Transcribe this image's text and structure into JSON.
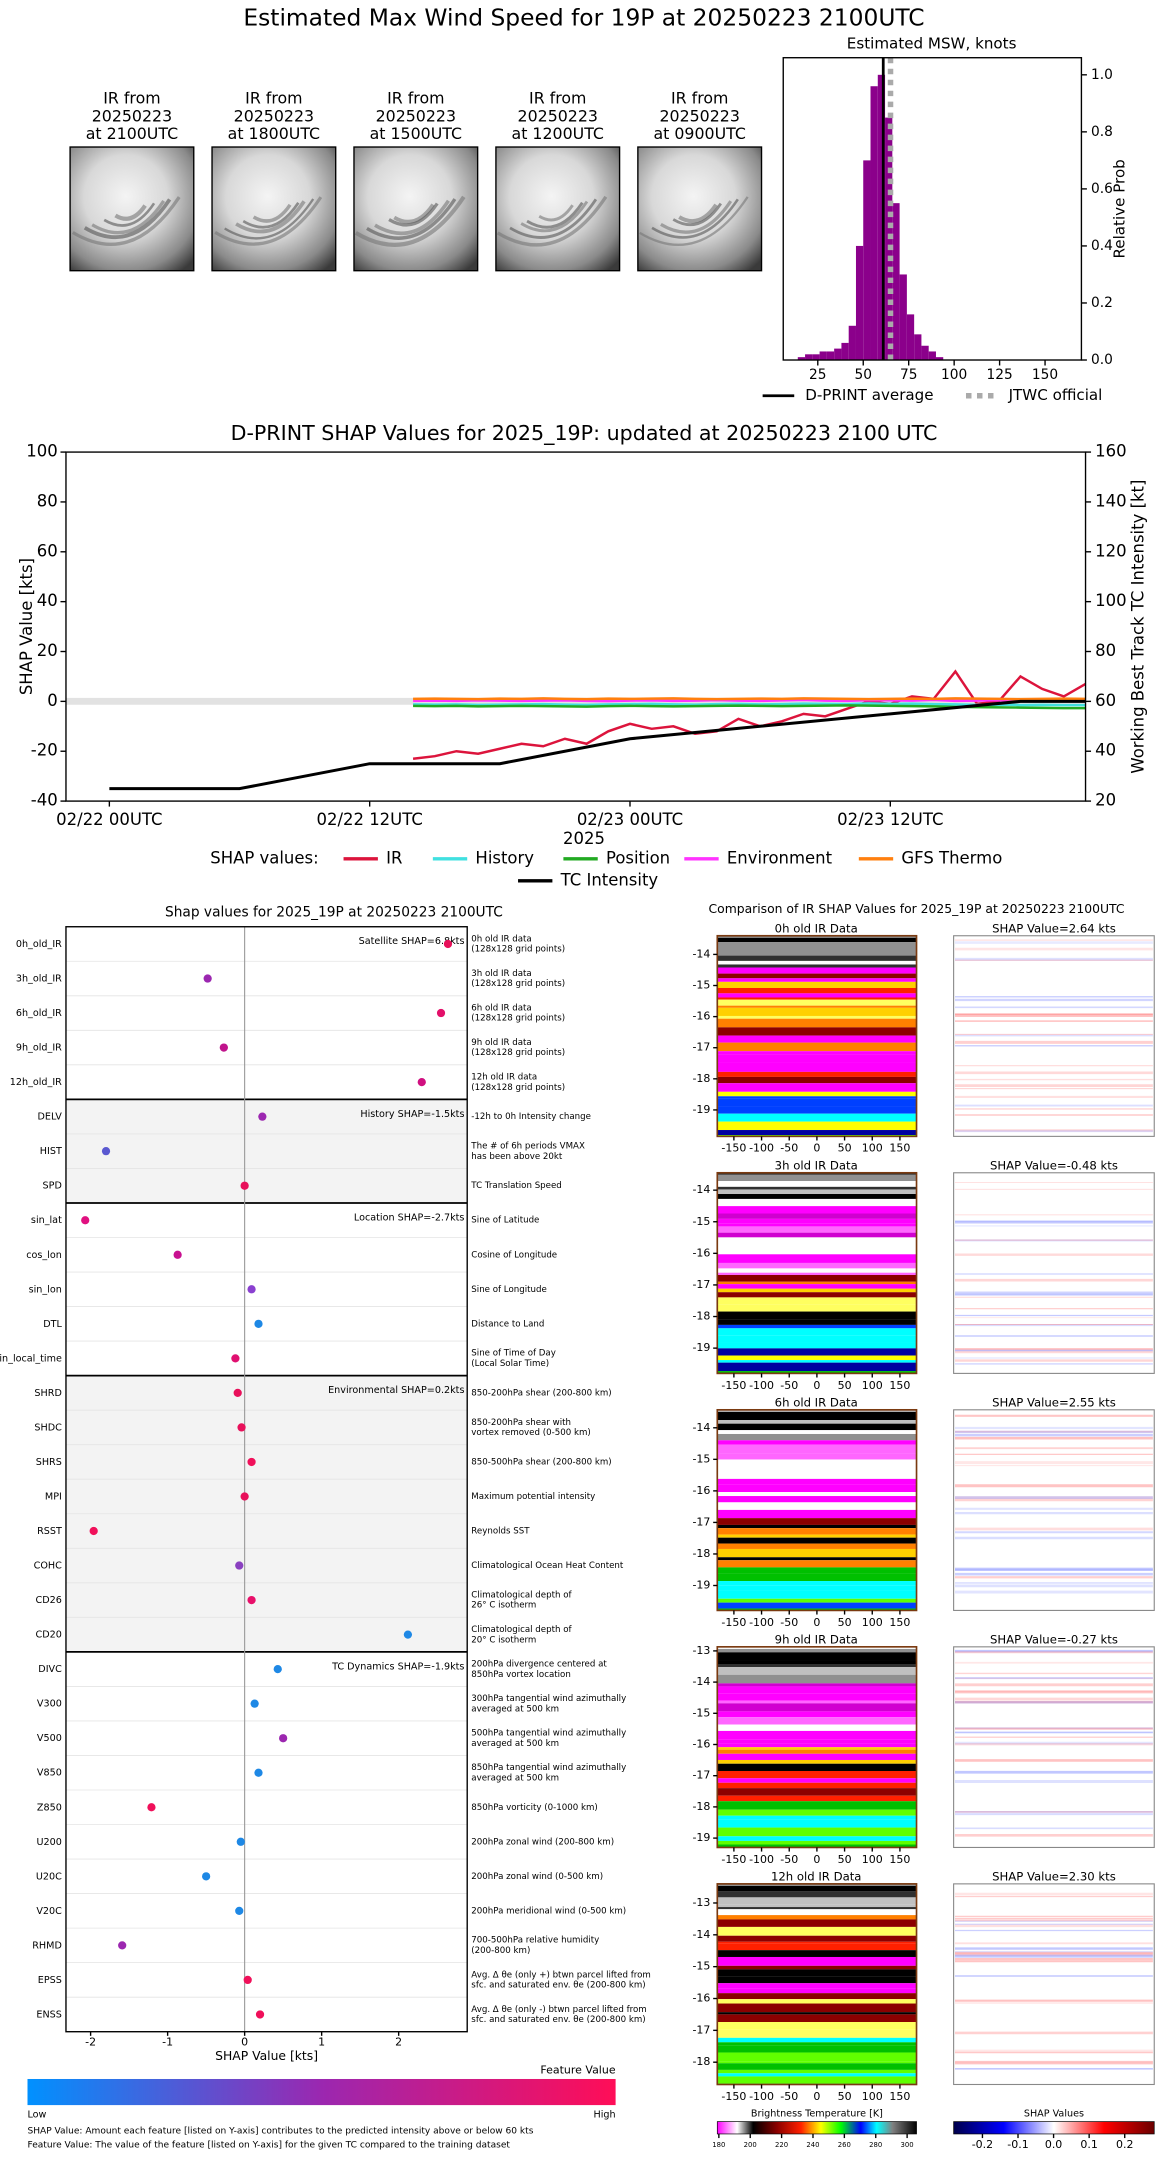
{
  "title": "Estimated Max Wind Speed for 19P at 20250223 2100UTC",
  "ir_images": [
    [
      "IR from",
      "20250223",
      "at 2100UTC"
    ],
    [
      "IR from",
      "20250223",
      "at 1800UTC"
    ],
    [
      "IR from",
      "20250223",
      "at 1500UTC"
    ],
    [
      "IR from",
      "20250223",
      "at 1200UTC"
    ],
    [
      "IR from",
      "20250223",
      "at 0900UTC"
    ]
  ],
  "chart_data": [
    {
      "type": "histogram",
      "title": "Estimated MSW, knots",
      "bins": [
        14,
        18,
        22,
        26,
        30,
        34,
        38,
        42,
        46,
        50,
        54,
        58,
        62,
        66,
        70,
        74,
        78,
        82,
        86,
        90,
        94
      ],
      "values": [
        0.01,
        0.02,
        0.02,
        0.03,
        0.03,
        0.04,
        0.06,
        0.12,
        0.4,
        0.7,
        0.96,
        1.0,
        0.85,
        0.55,
        0.3,
        0.16,
        0.09,
        0.05,
        0.03,
        0.01
      ],
      "color": "#8b008b",
      "xlim": [
        6,
        170
      ],
      "xticks": [
        25,
        50,
        75,
        100,
        125,
        150
      ],
      "ylim": [
        0,
        1.06
      ],
      "yticks": [
        {
          "value": 0,
          "label": "0.0"
        },
        0.2,
        0.4,
        0.6,
        0.8,
        {
          "value": 1,
          "label": "1.0"
        }
      ],
      "ylabel": "Relative Prob",
      "lines": [
        {
          "name": "D-PRINT average",
          "value": 61,
          "color": "#000000",
          "style": "solid"
        },
        {
          "name": "JTWC official",
          "value": 65,
          "color": "#aaaaaa",
          "style": "dotted"
        }
      ]
    },
    {
      "type": "line",
      "title": "D-PRINT SHAP Values for 2025_19P: updated at 20250223 2100 UTC",
      "xlabel": "2025",
      "ylabel": "SHAP Value [kts]",
      "y2label": "Working Best Track TC Intensity [kt]",
      "legend_title": "SHAP values:",
      "xlim": [
        "2025-02-21 22:00",
        "2025-02-23 21:00"
      ],
      "xticks": [
        {
          "value": "2025-02-22 00:00",
          "label": "02/22 00UTC"
        },
        {
          "value": "2025-02-22 12:00",
          "label": "02/22 12UTC"
        },
        {
          "value": "2025-02-23 00:00",
          "label": "02/23 00UTC"
        },
        {
          "value": "2025-02-23 12:00",
          "label": "02/23 12UTC"
        }
      ],
      "ylim": [
        -40,
        100
      ],
      "yticks": [
        -40,
        -20,
        0,
        20,
        40,
        60,
        80,
        100
      ],
      "y2lim": [
        20,
        160
      ],
      "y2ticks": [
        20,
        40,
        60,
        80,
        100,
        120,
        140,
        160
      ],
      "x": [
        "2025-02-22 14:00",
        "2025-02-22 15:00",
        "2025-02-22 16:00",
        "2025-02-22 17:00",
        "2025-02-22 18:00",
        "2025-02-22 19:00",
        "2025-02-22 20:00",
        "2025-02-22 21:00",
        "2025-02-22 22:00",
        "2025-02-22 23:00",
        "2025-02-23 00:00",
        "2025-02-23 01:00",
        "2025-02-23 02:00",
        "2025-02-23 03:00",
        "2025-02-23 04:00",
        "2025-02-23 05:00",
        "2025-02-23 06:00",
        "2025-02-23 07:00",
        "2025-02-23 08:00",
        "2025-02-23 09:00",
        "2025-02-23 10:00",
        "2025-02-23 11:00",
        "2025-02-23 12:00",
        "2025-02-23 13:00",
        "2025-02-23 14:00",
        "2025-02-23 15:00",
        "2025-02-23 16:00",
        "2025-02-23 17:00",
        "2025-02-23 18:00",
        "2025-02-23 19:00",
        "2025-02-23 20:00",
        "2025-02-23 21:00"
      ],
      "series": [
        {
          "name": "IR",
          "color": "#dc143c",
          "values": [
            -23,
            -22,
            -20,
            -21,
            -19,
            -17,
            -18,
            -15,
            -17,
            -12,
            -9,
            -11,
            -10,
            -13,
            -12,
            -7,
            -10,
            -8,
            -5,
            -6,
            -3,
            0,
            -1,
            2,
            1,
            12,
            -1,
            0,
            10,
            5,
            2,
            7
          ]
        },
        {
          "name": "History",
          "color": "#40e0e0",
          "values": [
            -1.2,
            -1.3,
            -1.2,
            -1.4,
            -1.3,
            -1.2,
            -1.1,
            -1.3,
            -1.4,
            -1.2,
            -1.1,
            -1.0,
            -1.2,
            -1.3,
            -1.1,
            -1.0,
            -1.2,
            -1.1,
            -0.9,
            -1.0,
            -1.1,
            -0.8,
            -1.0,
            -0.9,
            -1.1,
            -1.2,
            -1.4,
            -1.3,
            -1.5,
            -1.4,
            -1.5,
            -1.5
          ]
        },
        {
          "name": "Position",
          "color": "#22aa22",
          "values": [
            -1.8,
            -1.9,
            -1.8,
            -2.0,
            -1.9,
            -1.8,
            -1.9,
            -2.0,
            -2.1,
            -1.9,
            -1.8,
            -1.9,
            -2.0,
            -1.9,
            -1.8,
            -1.7,
            -1.8,
            -1.9,
            -1.8,
            -1.7,
            -1.6,
            -1.7,
            -1.8,
            -1.9,
            -2.0,
            -2.2,
            -2.3,
            -2.4,
            -2.5,
            -2.6,
            -2.7,
            -2.7
          ]
        },
        {
          "name": "Environment",
          "color": "#ff33ff",
          "values": [
            0.2,
            0.3,
            0.2,
            0.4,
            0.3,
            0.2,
            0.3,
            0.4,
            0.2,
            0.1,
            0.3,
            0.4,
            0.2,
            0.3,
            0.5,
            0.3,
            0.2,
            0.4,
            0.6,
            0.3,
            0.2,
            0.5,
            0.4,
            0.3,
            0.6,
            0.2,
            0.3,
            0.5,
            0.4,
            0.2,
            0.3,
            0.2
          ]
        },
        {
          "name": "GFS Thermo",
          "color": "#ff7f0e",
          "values": [
            1.0,
            1.1,
            1.0,
            0.9,
            1.1,
            1.0,
            1.2,
            1.0,
            0.9,
            1.1,
            1.0,
            1.1,
            1.2,
            1.0,
            0.9,
            1.0,
            1.1,
            1.0,
            1.2,
            1.1,
            1.0,
            0.9,
            1.0,
            1.1,
            1.0,
            1.2,
            1.1,
            1.0,
            0.9,
            1.0,
            1.1,
            1.0
          ]
        },
        {
          "name": "TC Intensity",
          "color": "#000000",
          "axis": "y2",
          "x": [
            "2025-02-22 00:00",
            "2025-02-22 06:00",
            "2025-02-22 12:00",
            "2025-02-22 18:00",
            "2025-02-23 00:00",
            "2025-02-23 06:00",
            "2025-02-23 12:00",
            "2025-02-23 18:00",
            "2025-02-23 21:00"
          ],
          "values": [
            25,
            25,
            35,
            35,
            45,
            50,
            55,
            60,
            60
          ]
        }
      ]
    },
    {
      "type": "dot",
      "title": "Shap values for 2025_19P at 20250223 2100UTC",
      "xlim": [
        -2.32,
        2.89
      ],
      "xticks": [
        -2,
        -1,
        0,
        1,
        2
      ],
      "xlabel": "SHAP Value [kts]",
      "groups": [
        {
          "title": "Satellite SHAP=6.8kts",
          "shaded": false,
          "features": [
            "0h_old_IR",
            "3h_old_IR",
            "6h_old_IR",
            "9h_old_IR",
            "12h_old_IR"
          ],
          "values": [
            2.64,
            -0.48,
            2.55,
            -0.27,
            2.3
          ],
          "colors": [
            "#e8105a",
            "#9b27b0",
            "#e3106a",
            "#c0148c",
            "#d01080"
          ],
          "descriptions": [
            [
              "0h old IR data",
              "(128x128 grid points)"
            ],
            [
              "3h old IR data",
              "(128x128 grid points)"
            ],
            [
              "6h old IR data",
              "(128x128 grid points)"
            ],
            [
              "9h old IR data",
              "(128x128 grid points)"
            ],
            [
              "12h old IR data",
              "(128x128 grid points)"
            ]
          ]
        },
        {
          "title": "History SHAP=-1.5kts",
          "shaded": true,
          "features": [
            "DELV",
            "HIST",
            "SPD"
          ],
          "values": [
            0.23,
            -1.8,
            0.0
          ],
          "colors": [
            "#9c27b0",
            "#5a58d0",
            "#e8105a"
          ],
          "descriptions": [
            [
              "-12h to 0h Intensity change"
            ],
            [
              "The # of 6h periods VMAX",
              "has been above 20kt"
            ],
            [
              "TC Translation Speed"
            ]
          ]
        },
        {
          "title": "Location SHAP=-2.7kts",
          "shaded": false,
          "features": [
            "sin_lat",
            "cos_lon",
            "sin_lon",
            "DTL",
            "sin_local_time"
          ],
          "values": [
            -2.07,
            -0.87,
            0.09,
            0.18,
            -0.12
          ],
          "colors": [
            "#e01080",
            "#c81090",
            "#8a40d0",
            "#1e88e5",
            "#e01070"
          ],
          "descriptions": [
            [
              "Sine of Latitude"
            ],
            [
              "Cosine of Longitude"
            ],
            [
              "Sine of Longitude"
            ],
            [
              "Distance to Land"
            ],
            [
              "Sine of Time of Day",
              "(Local Solar Time)"
            ]
          ]
        },
        {
          "title": "Environmental SHAP=0.2kts",
          "shaded": true,
          "features": [
            "SHRD",
            "SHDC",
            "SHRS",
            "MPI",
            "RSST",
            "COHC",
            "CD26",
            "CD20"
          ],
          "values": [
            -0.09,
            -0.04,
            0.09,
            0.0,
            -1.96,
            -0.07,
            0.09,
            2.12
          ],
          "colors": [
            "#e8105a",
            "#e8105a",
            "#f0105a",
            "#e8105a",
            "#f0105a",
            "#8a40c0",
            "#e8106a",
            "#1e88e5"
          ],
          "descriptions": [
            [
              "850-200hPa shear (200-800 km)"
            ],
            [
              "850-200hPa shear with",
              "vortex removed (0-500 km)"
            ],
            [
              "850-500hPa shear (200-800 km)"
            ],
            [
              "Maximum potential intensity"
            ],
            [
              "Reynolds SST"
            ],
            [
              "Climatological Ocean Heat Content"
            ],
            [
              "Climatological depth of",
              "26° C isotherm"
            ],
            [
              "Climatological depth of",
              "20° C isotherm"
            ]
          ]
        },
        {
          "title": "TC Dynamics SHAP=-1.9kts",
          "shaded": false,
          "features": [
            "DIVC",
            "V300",
            "V500",
            "V850",
            "Z850",
            "U200",
            "U20C",
            "V20C",
            "RHMD",
            "EPSS",
            "ENSS"
          ],
          "values": [
            0.43,
            0.13,
            0.5,
            0.18,
            -1.21,
            -0.05,
            -0.5,
            -0.07,
            -1.59,
            0.04,
            0.2
          ],
          "colors": [
            "#1e88e5",
            "#1e88e5",
            "#9c27b0",
            "#1e88e5",
            "#f0105a",
            "#1e88e5",
            "#1e88e5",
            "#1e88e5",
            "#9c27b0",
            "#f0105a",
            "#f0105a"
          ],
          "descriptions": [
            [
              "200hPa divergence centered at",
              "850hPa vortex location"
            ],
            [
              "300hPa tangential wind azimuthally",
              "averaged at 500 km"
            ],
            [
              "500hPa tangential wind azimuthally",
              "averaged at 500 km"
            ],
            [
              "850hPa tangential wind azimuthally",
              "averaged at 500 km"
            ],
            [
              "850hPa vorticity (0-1000 km)"
            ],
            [
              "200hPa zonal wind (200-800 km)"
            ],
            [
              "200hPa zonal wind (0-500 km)"
            ],
            [
              "200hPa meridional wind (0-500 km)"
            ],
            [
              "700-500hPa relative humidity",
              "(200-800 km)"
            ],
            [
              "Avg. Δ θe (only +) btwn parcel lifted from",
              "sfc. and saturated env. θe (200-800 km)"
            ],
            [
              "Avg. Δ θe (only -) btwn parcel lifted from",
              "sfc. and saturated env. θe (200-800 km)"
            ]
          ]
        }
      ],
      "colorbar": {
        "title": "Feature Value",
        "low": "Low",
        "high": "High",
        "colors": [
          "#0091ff",
          "#9b27b0",
          "#ff0d57"
        ]
      },
      "notes": [
        "SHAP Value: Amount each feature [listed on Y-axis] contributes to the predicted intensity above or below 60 kts",
        "Feature Value: The value of the feature [listed on Y-axis] for the given TC compared to the training dataset"
      ]
    }
  ],
  "comparison": {
    "title": "Comparison of IR SHAP Values for 2025_19P at 20250223 2100UTC",
    "xlim": [
      -180,
      180
    ],
    "xticks": [
      -150,
      -100,
      -50,
      0,
      50,
      100,
      150
    ],
    "panels": [
      {
        "title": "0h old IR Data",
        "shap_title": "SHAP Value=2.64 kts",
        "ylim": [
          -13.4,
          -19.85
        ],
        "yticks": [
          -14,
          -15,
          -16,
          -17,
          -18,
          -19
        ]
      },
      {
        "title": "3h old IR Data",
        "shap_title": "SHAP Value=-0.48 kts",
        "ylim": [
          -13.45,
          -19.8
        ],
        "yticks": [
          -14,
          -15,
          -16,
          -17,
          -18,
          -19
        ]
      },
      {
        "title": "6h old IR Data",
        "shap_title": "SHAP Value=2.55 kts",
        "ylim": [
          -13.43,
          -19.79
        ],
        "yticks": [
          -14,
          -15,
          -16,
          -17,
          -18,
          -19
        ]
      },
      {
        "title": "9h old IR Data",
        "shap_title": "SHAP Value=-0.27 kts",
        "ylim": [
          -12.87,
          -19.3
        ],
        "yticks": [
          -13,
          -14,
          -15,
          -16,
          -17,
          -18,
          -19
        ]
      },
      {
        "title": "12h old IR Data",
        "shap_title": "SHAP Value=2.30 kts",
        "ylim": [
          -12.4,
          -18.7
        ],
        "yticks": [
          -13,
          -14,
          -15,
          -16,
          -17,
          -18
        ]
      }
    ],
    "temp_colorbar": {
      "title": "Brightness Temperature [K]",
      "xlim": [
        179,
        306
      ],
      "xticks": [
        180,
        200,
        220,
        240,
        260,
        280,
        300
      ]
    },
    "shap_colorbar": {
      "title": "SHAP Values",
      "xlim": [
        -0.281,
        0.283
      ],
      "xticks": [
        -0.2,
        -0.1,
        {
          "value": 0,
          "label": "0.0"
        },
        0.1,
        0.2
      ]
    }
  }
}
